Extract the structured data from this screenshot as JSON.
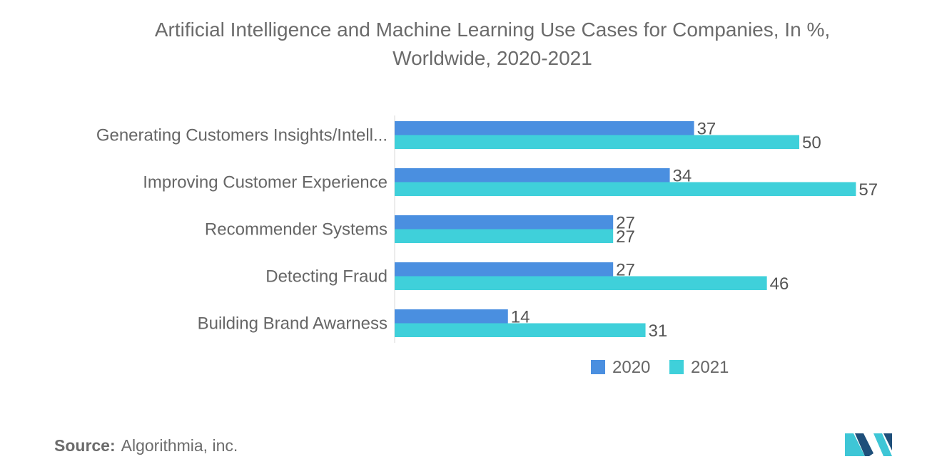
{
  "chart_data": {
    "type": "bar",
    "orientation": "horizontal",
    "title_line1": "Artificial Intelligence and Machine Learning Use Cases for Companies, In %,",
    "title_line2": "Worldwide, 2020-2021",
    "categories": [
      "Generating Customers Insights/Intell...",
      "Improving Customer Experience",
      "Recommender Systems",
      "Detecting Fraud",
      "Building Brand Awarness"
    ],
    "series": [
      {
        "name": "2020",
        "values": [
          37,
          34,
          27,
          27,
          14
        ],
        "color": "#4a8fe0"
      },
      {
        "name": "2021",
        "values": [
          50,
          57,
          27,
          46,
          31
        ],
        "color": "#3fd0da"
      }
    ],
    "xlim": [
      0,
      60
    ],
    "legend_position": "bottom-right",
    "grid": false
  },
  "source": {
    "label": "Source:",
    "text": "Algorithmia, inc."
  },
  "colors": {
    "logo_dark": "#1e4f7a",
    "logo_light": "#3ec6d6"
  }
}
